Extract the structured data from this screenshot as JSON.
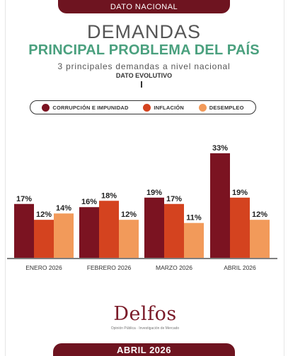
{
  "header": {
    "banner": "DATO NACIONAL"
  },
  "titles": {
    "main": "DEMANDAS",
    "sub": "PRINCIPAL PROBLEMA DEL PAÍS",
    "subtitle": "3 principales demandas a nivel nacional",
    "subtitle2": "DATO EVOLUTIVO"
  },
  "legend": [
    {
      "label": "CORRUPCIÓN E IMPUNIDAD",
      "color": "#7b1321"
    },
    {
      "label": "INFLACIÓN",
      "color": "#d4431f"
    },
    {
      "label": "DESEMPLEO",
      "color": "#f29a5a"
    }
  ],
  "chart_data": {
    "type": "bar",
    "categories": [
      "ENERO 2026",
      "FEBRERO 2026",
      "MARZO 2026",
      "ABRIL 2026"
    ],
    "series": [
      {
        "name": "CORRUPCIÓN E IMPUNIDAD",
        "values": [
          17,
          16,
          19,
          33
        ],
        "color": "#7b1321"
      },
      {
        "name": "INFLACIÓN",
        "values": [
          12,
          18,
          17,
          19
        ],
        "color": "#d4431f"
      },
      {
        "name": "DESEMPLEO",
        "values": [
          14,
          12,
          11,
          12
        ],
        "color": "#f29a5a"
      }
    ],
    "value_suffix": "%",
    "ylim": [
      0,
      33
    ],
    "grid": false,
    "legend_position": "top"
  },
  "logo": {
    "name": "Delfos",
    "tagline": "Opinión Pública · Investigación de Mercado"
  },
  "footer": {
    "banner": "ABRIL 2026"
  }
}
